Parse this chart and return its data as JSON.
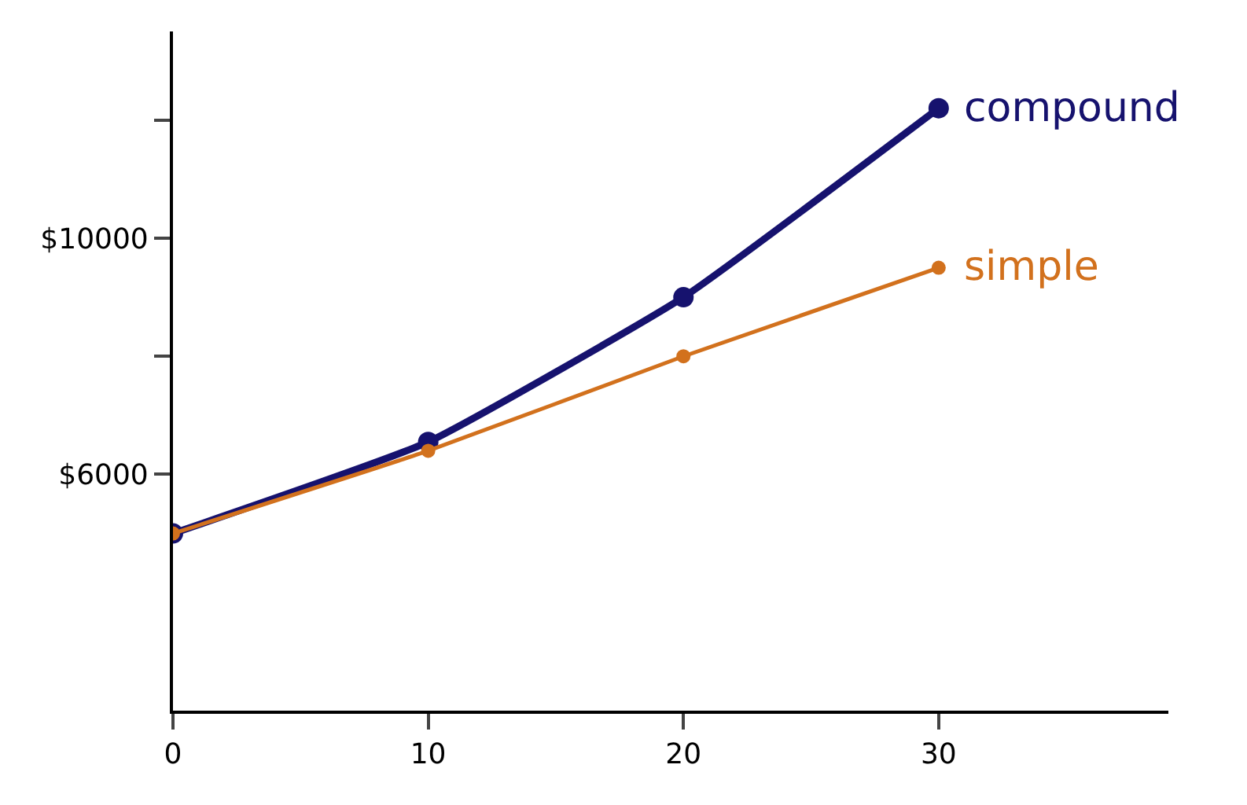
{
  "chart_data": {
    "type": "line",
    "x": [
      0,
      10,
      20,
      30
    ],
    "series": [
      {
        "name": "compound",
        "color": "#16126e",
        "values": [
          5000,
          6550,
          9000,
          12200
        ]
      },
      {
        "name": "simple",
        "color": "#d2711d",
        "values": [
          5000,
          6400,
          8000,
          9500
        ]
      }
    ],
    "xlim": [
      0,
      39
    ],
    "xticks": [
      0,
      10,
      20,
      30
    ],
    "ylim": [
      2000,
      13500
    ],
    "yticks": [
      {
        "value": 6000,
        "label": "$6000"
      },
      {
        "value": 8000,
        "label": null
      },
      {
        "value": 10000,
        "label": "$10000"
      },
      {
        "value": 12000,
        "label": null
      }
    ],
    "legend": false,
    "marker": "circle",
    "line_style": "solid"
  }
}
